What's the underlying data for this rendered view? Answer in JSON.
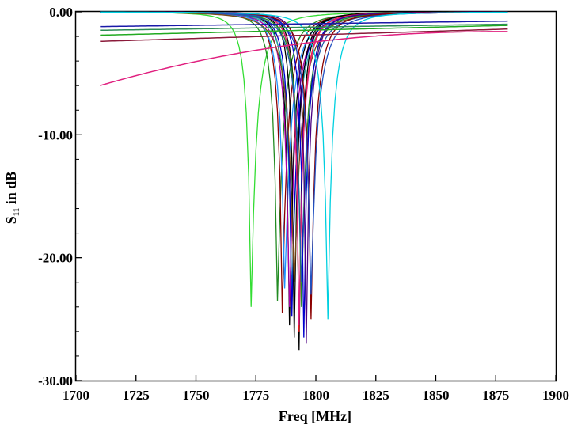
{
  "chart_data": {
    "type": "line",
    "title": "",
    "xlabel": "Freq [MHz]",
    "ylabel_main": "S",
    "ylabel_sub": "11",
    "ylabel_rest": " in dB",
    "xlim": [
      1700,
      1900
    ],
    "ylim": [
      -30,
      0
    ],
    "x_ticks": [
      1700,
      1725,
      1750,
      1775,
      1800,
      1825,
      1850,
      1875,
      1900
    ],
    "y_ticks": [
      {
        "value": 0,
        "label": "0.00"
      },
      {
        "value": -10,
        "label": "-10.00"
      },
      {
        "value": -20,
        "label": "-20.00"
      },
      {
        "value": -30,
        "label": "-30.00"
      }
    ],
    "grid": false,
    "legend": "none",
    "x_range": [
      1710,
      1880
    ],
    "flat_series": [
      {
        "color": "#1a1aa8",
        "start": -1.2,
        "end": -0.75
      },
      {
        "color": "#2e8b57",
        "start": -1.5,
        "end": -1.0
      },
      {
        "color": "#22aa22",
        "start": -1.9,
        "end": -1.1
      },
      {
        "color": "#8b1a3a",
        "start": -2.4,
        "end": -1.4
      },
      {
        "color": "#e0207f",
        "start": -6.0,
        "end": -1.6
      }
    ],
    "resonance_series": [
      {
        "color": "#33dd33",
        "f0": 1773,
        "depth": -24.0,
        "edge": -3.9,
        "end": -3.3
      },
      {
        "color": "#228b22",
        "f0": 1784,
        "depth": -23.5,
        "edge": -3.0,
        "end": -3.6
      },
      {
        "color": "#8b0000",
        "f0": 1786,
        "depth": -24.5,
        "edge": -3.2,
        "end": -4.2
      },
      {
        "color": "#1e90ff",
        "f0": 1787,
        "depth": -22.5,
        "edge": -2.6,
        "end": -3.5
      },
      {
        "color": "#000000",
        "f0": 1789,
        "depth": -25.5,
        "edge": -3.3,
        "end": -4.3
      },
      {
        "color": "#aa00aa",
        "f0": 1789,
        "depth": -24.0,
        "edge": -3.4,
        "end": -4.4
      },
      {
        "color": "#20b2aa",
        "f0": 1790,
        "depth": -23.0,
        "edge": -2.8,
        "end": -4.0
      },
      {
        "color": "#0000cd",
        "f0": 1790,
        "depth": -24.8,
        "edge": -3.0,
        "end": -4.6
      },
      {
        "color": "#000000",
        "f0": 1791,
        "depth": -26.5,
        "edge": -3.1,
        "end": -4.5
      },
      {
        "color": "#7a4a1a",
        "f0": 1791,
        "depth": -22.0,
        "edge": -3.6,
        "end": -4.0
      },
      {
        "color": "#000000",
        "f0": 1793,
        "depth": -27.5,
        "edge": -3.5,
        "end": -4.4
      },
      {
        "color": "#ff1a1a",
        "f0": 1793,
        "depth": -26.0,
        "edge": -3.2,
        "end": -4.3
      },
      {
        "color": "#e0207f",
        "f0": 1793,
        "depth": -25.5,
        "edge": -3.0,
        "end": -4.2
      },
      {
        "color": "#228b22",
        "f0": 1794,
        "depth": -24.0,
        "edge": -3.3,
        "end": -4.1
      },
      {
        "color": "#1e5aa8",
        "f0": 1794,
        "depth": -22.0,
        "edge": -2.7,
        "end": -3.8
      },
      {
        "color": "#0000cd",
        "f0": 1795,
        "depth": -26.5,
        "edge": -3.5,
        "end": -4.7
      },
      {
        "color": "#4b0082",
        "f0": 1796,
        "depth": -27.0,
        "edge": -3.3,
        "end": -4.8
      },
      {
        "color": "#8b0000",
        "f0": 1798,
        "depth": -25.0,
        "edge": -3.4,
        "end": -4.6
      },
      {
        "color": "#2050c0",
        "f0": 1798,
        "depth": -23.0,
        "edge": -3.0,
        "end": -4.4
      },
      {
        "color": "#00d0e0",
        "f0": 1805,
        "depth": -25.0,
        "edge": -3.6,
        "end": -5.0
      }
    ]
  }
}
